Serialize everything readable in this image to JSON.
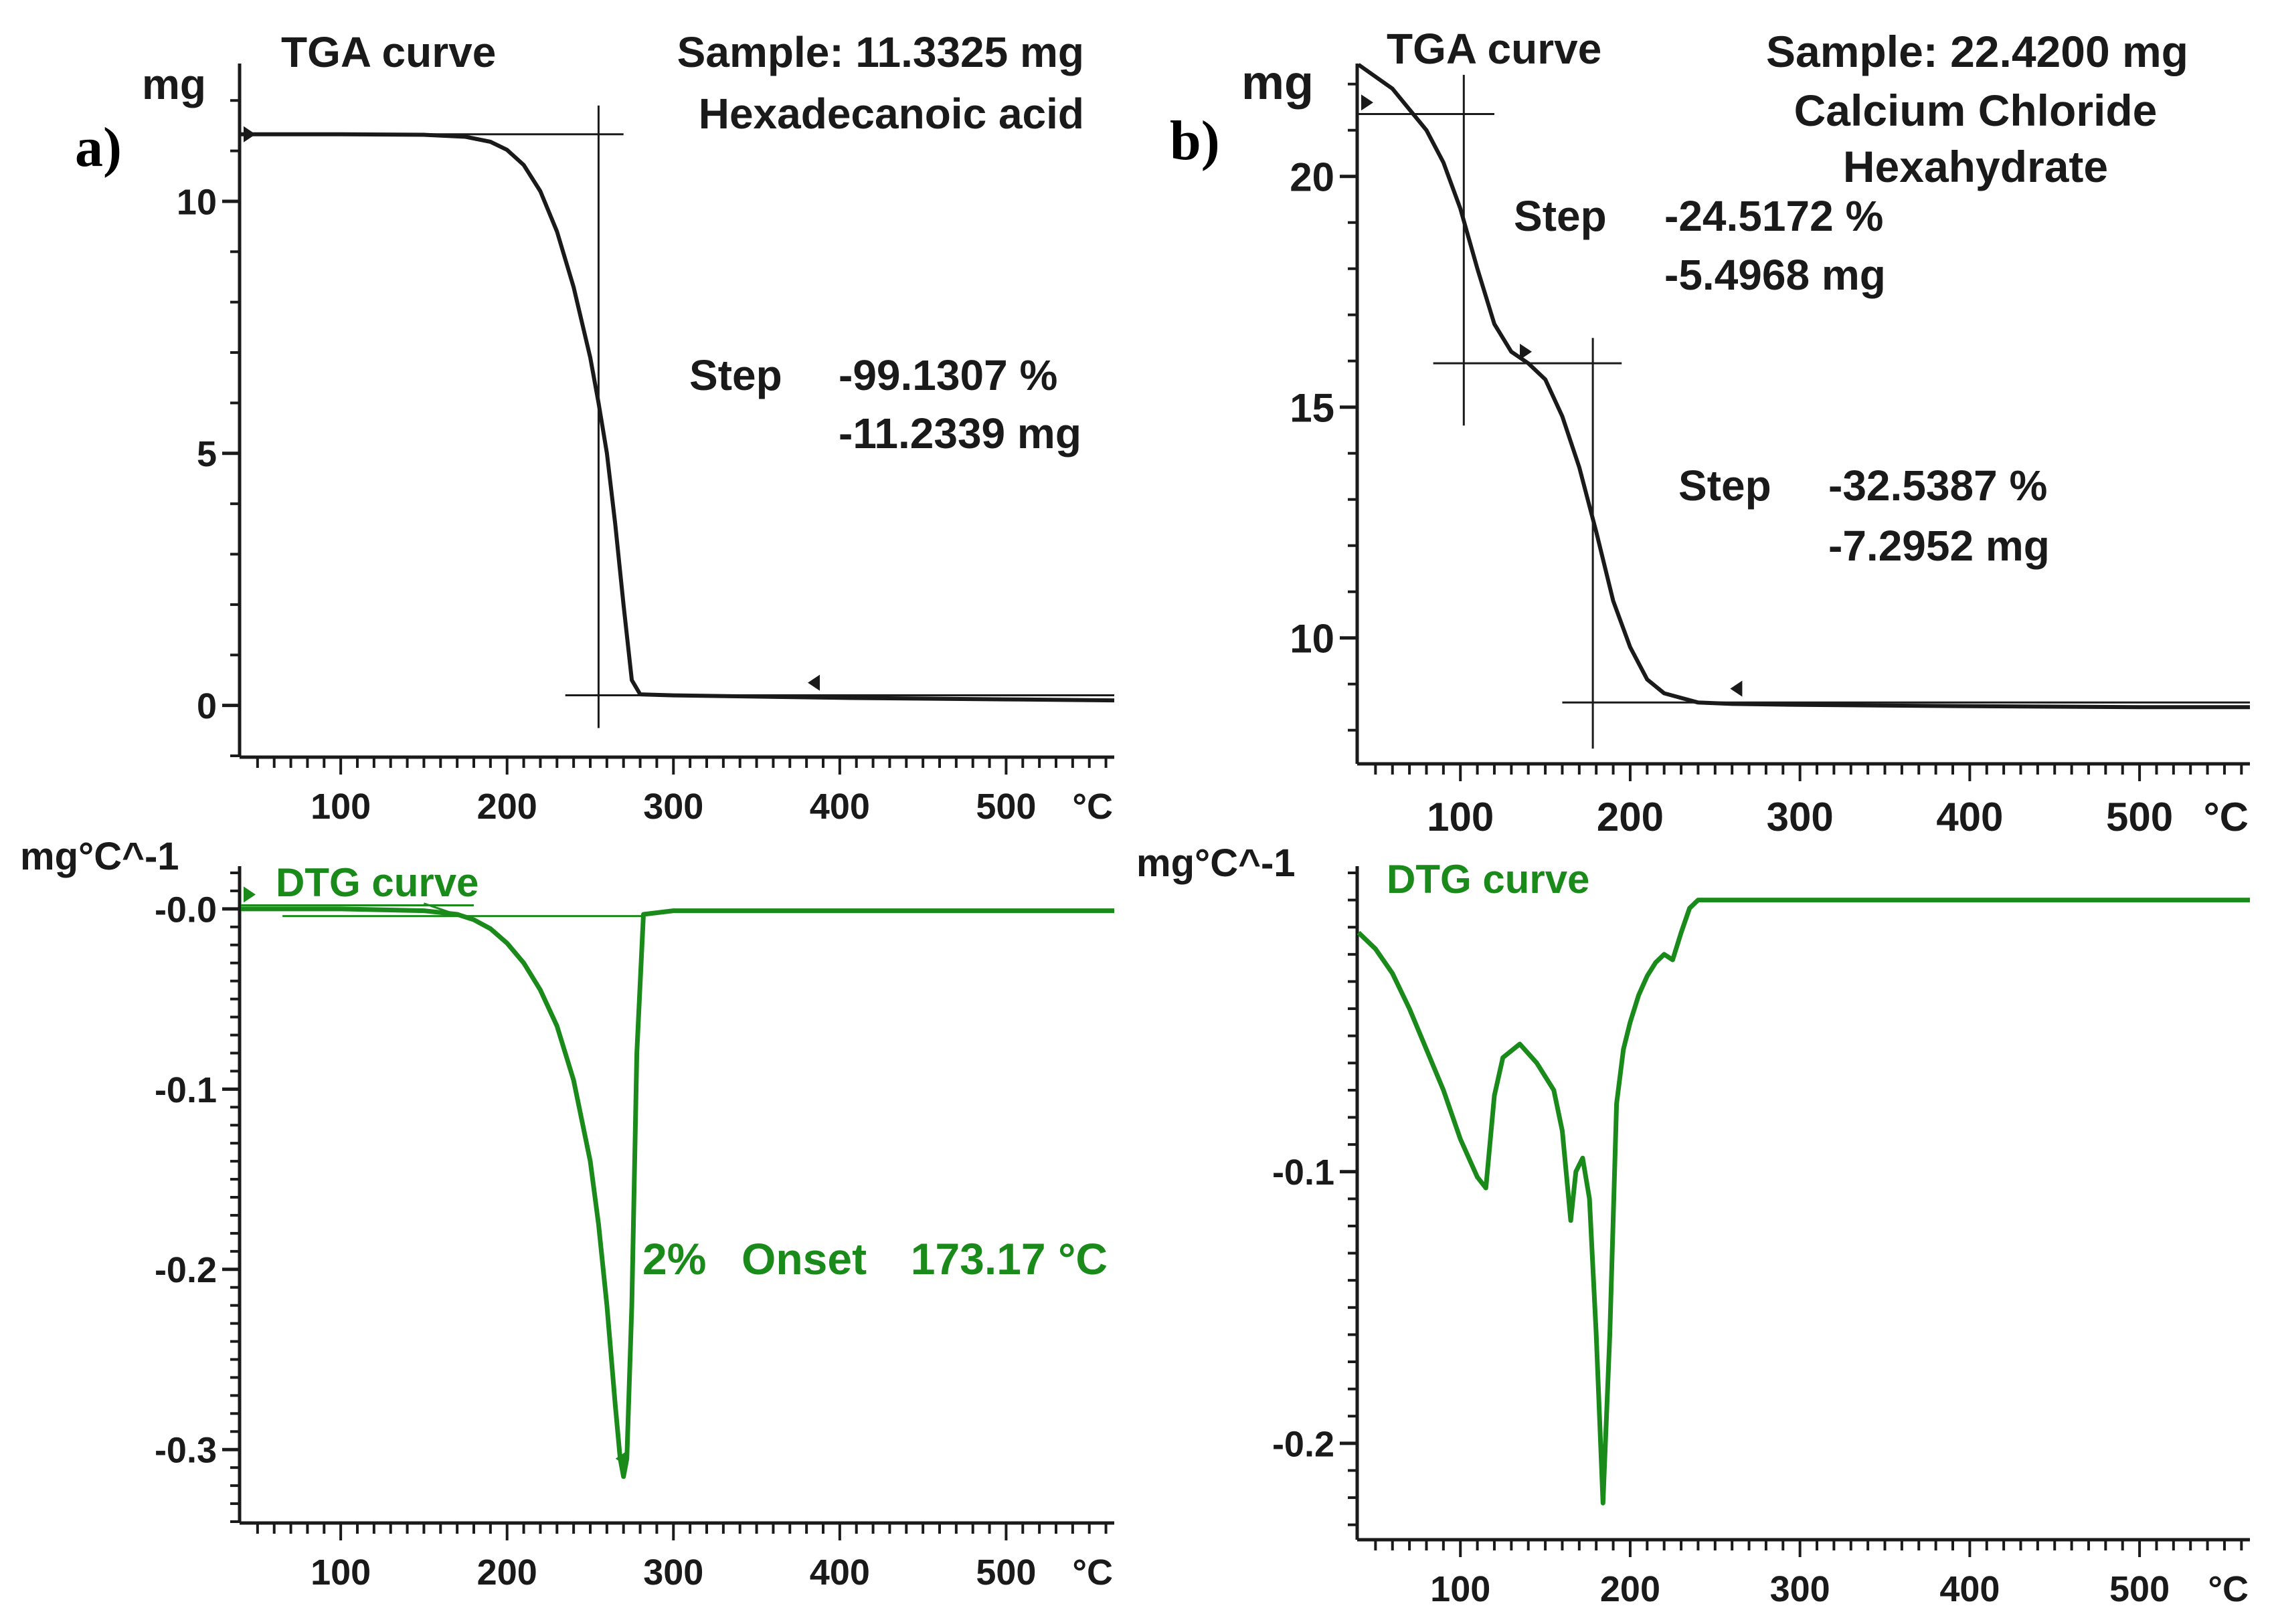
{
  "figure": {
    "panel_a_letter": "a)",
    "panel_b_letter": "b)"
  },
  "chart_data": [
    {
      "id": "a-tga",
      "type": "line",
      "curve_label": "TGA curve",
      "ylabel": "mg",
      "xlabel": "°C",
      "info_lines": [
        "Sample: 11.3325 mg",
        "Hexadecanoic acid"
      ],
      "xlim": [
        40,
        565
      ],
      "ylim": [
        -1,
        12.6
      ],
      "xticks": [
        100,
        200,
        300,
        400,
        500
      ],
      "yticks": [
        0,
        5,
        10
      ],
      "yticklabels": [
        "0",
        "5",
        "10"
      ],
      "steps": [
        {
          "label": "Step",
          "percent": "-99.1307 %",
          "mass": "-11.2339 mg"
        }
      ],
      "series": [
        {
          "name": "TGA",
          "color": "#1a1a1a",
          "x": [
            40,
            100,
            150,
            175,
            190,
            200,
            210,
            220,
            230,
            240,
            250,
            255,
            260,
            265,
            270,
            275,
            280,
            300,
            400,
            500,
            565
          ],
          "y": [
            11.33,
            11.33,
            11.32,
            11.28,
            11.18,
            11.02,
            10.72,
            10.2,
            9.4,
            8.3,
            6.9,
            6.0,
            5.0,
            3.6,
            2.0,
            0.5,
            0.22,
            0.2,
            0.15,
            0.12,
            0.1
          ]
        }
      ]
    },
    {
      "id": "a-dtg",
      "type": "line",
      "curve_label": "DTG curve",
      "ylabel": "mg°C^-1",
      "xlabel": "°C",
      "xlim": [
        40,
        565
      ],
      "ylim": [
        -0.34,
        0.02
      ],
      "xticks": [
        100,
        200,
        300,
        400,
        500
      ],
      "yticks": [
        0,
        -0.1,
        -0.2,
        -0.3
      ],
      "yticklabels": [
        "-0.0",
        "-0.1",
        "-0.2",
        "-0.3"
      ],
      "onset": {
        "percent": "2%",
        "label": "Onset",
        "value": "173.17 °C"
      },
      "series": [
        {
          "name": "DTG",
          "color": "#1a8a1a",
          "x": [
            40,
            100,
            150,
            170,
            180,
            190,
            200,
            210,
            220,
            230,
            240,
            250,
            255,
            260,
            265,
            268,
            270,
            272,
            275,
            278,
            282,
            300,
            400,
            500,
            565
          ],
          "y": [
            0,
            0,
            -0.001,
            -0.003,
            -0.006,
            -0.011,
            -0.019,
            -0.03,
            -0.045,
            -0.065,
            -0.095,
            -0.14,
            -0.175,
            -0.22,
            -0.275,
            -0.305,
            -0.315,
            -0.305,
            -0.22,
            -0.08,
            -0.003,
            -0.001,
            -0.001,
            -0.001,
            -0.001
          ]
        }
      ]
    },
    {
      "id": "b-tga",
      "type": "line",
      "curve_label": "TGA curve",
      "ylabel": "mg",
      "xlabel": "°C",
      "info_lines": [
        "Sample: 22.4200 mg",
        "Calcium Chloride",
        "Hexahydrate"
      ],
      "xlim": [
        40,
        565
      ],
      "ylim": [
        7.3,
        22.3
      ],
      "xticks": [
        100,
        200,
        300,
        400,
        500
      ],
      "yticks": [
        10,
        15,
        20
      ],
      "yticklabels": [
        "10",
        "15",
        "20"
      ],
      "steps": [
        {
          "label": "Step",
          "percent": "-24.5172 %",
          "mass": "-5.4968 mg"
        },
        {
          "label": "Step",
          "percent": "-32.5387 %",
          "mass": "-7.2952 mg"
        }
      ],
      "series": [
        {
          "name": "TGA",
          "color": "#1a1a1a",
          "x": [
            40,
            60,
            80,
            90,
            100,
            110,
            120,
            130,
            140,
            150,
            160,
            170,
            180,
            190,
            200,
            210,
            220,
            240,
            260,
            300,
            400,
            500,
            565
          ],
          "y": [
            22.42,
            21.9,
            21.0,
            20.3,
            19.3,
            18.0,
            16.8,
            16.2,
            15.95,
            15.6,
            14.8,
            13.7,
            12.3,
            10.8,
            9.8,
            9.1,
            8.8,
            8.6,
            8.57,
            8.55,
            8.52,
            8.5,
            8.5
          ]
        }
      ]
    },
    {
      "id": "b-dtg",
      "type": "line",
      "curve_label": "DTG curve",
      "ylabel": "mg°C^-1",
      "xlabel": "°C",
      "xlim": [
        40,
        565
      ],
      "ylim": [
        -0.235,
        0.01
      ],
      "xticks": [
        100,
        200,
        300,
        400,
        500
      ],
      "yticks": [
        -0.1,
        -0.2
      ],
      "yticklabels": [
        "-0.1",
        "-0.2"
      ],
      "series": [
        {
          "name": "DTG",
          "color": "#1a8a1a",
          "x": [
            40,
            50,
            60,
            70,
            80,
            90,
            100,
            110,
            115,
            120,
            125,
            135,
            145,
            155,
            160,
            165,
            168,
            172,
            176,
            180,
            184,
            188,
            192,
            196,
            200,
            205,
            210,
            215,
            220,
            225,
            230,
            235,
            240,
            260,
            300,
            400,
            500,
            565
          ],
          "y": [
            -0.012,
            -0.018,
            -0.027,
            -0.04,
            -0.055,
            -0.07,
            -0.088,
            -0.102,
            -0.106,
            -0.072,
            -0.058,
            -0.053,
            -0.06,
            -0.07,
            -0.085,
            -0.118,
            -0.1,
            -0.095,
            -0.11,
            -0.16,
            -0.222,
            -0.16,
            -0.075,
            -0.055,
            -0.045,
            -0.035,
            -0.028,
            -0.023,
            -0.02,
            -0.022,
            -0.012,
            -0.003,
            0,
            0,
            0,
            0,
            0,
            0
          ]
        }
      ]
    }
  ]
}
